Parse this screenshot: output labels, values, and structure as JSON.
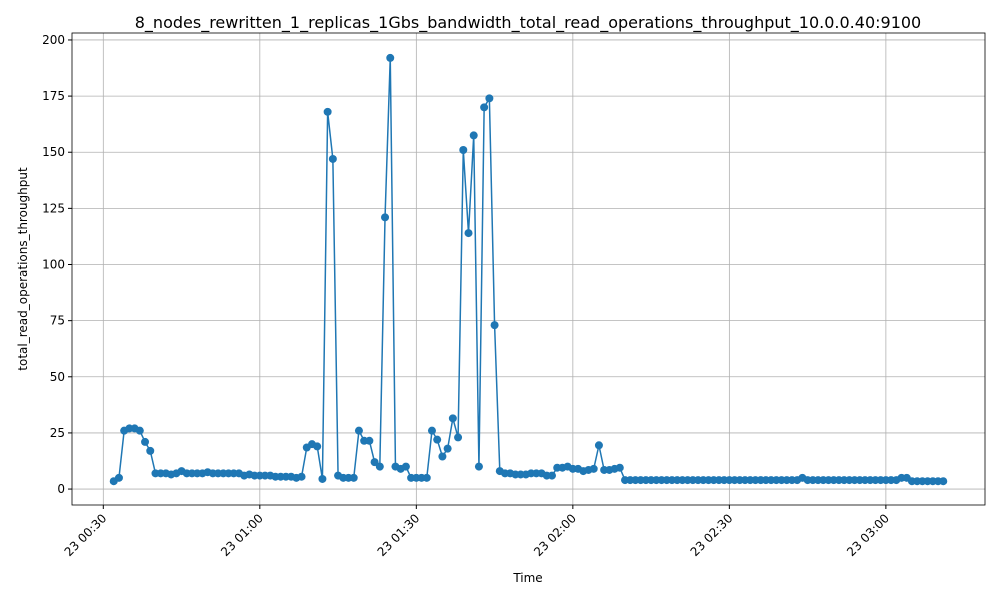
{
  "chart_data": {
    "type": "line",
    "title": "8_nodes_rewritten_1_replicas_1Gbs_bandwidth_total_read_operations_throughput_10.0.0.40:9100",
    "xlabel": "Time",
    "ylabel": "total_read_operations_throughput",
    "color": "#1f77b4",
    "grid": true,
    "xlim": [
      "23 00:24",
      "23 03:19"
    ],
    "xticks": [
      "23 00:30",
      "23 01:00",
      "23 01:30",
      "23 02:00",
      "23 02:30",
      "23 03:00"
    ],
    "ylim": [
      -7.1,
      203.1
    ],
    "yticks": [
      0,
      25,
      50,
      75,
      100,
      125,
      150,
      175,
      200
    ],
    "x": [
      "23 00:32",
      "23 00:33",
      "23 00:34",
      "23 00:35",
      "23 00:36",
      "23 00:37",
      "23 00:38",
      "23 00:39",
      "23 00:40",
      "23 00:41",
      "23 00:42",
      "23 00:43",
      "23 00:44",
      "23 00:45",
      "23 00:46",
      "23 00:47",
      "23 00:48",
      "23 00:49",
      "23 00:50",
      "23 00:51",
      "23 00:52",
      "23 00:53",
      "23 00:54",
      "23 00:55",
      "23 00:56",
      "23 00:57",
      "23 00:58",
      "23 00:59",
      "23 01:00",
      "23 01:01",
      "23 01:02",
      "23 01:03",
      "23 01:04",
      "23 01:05",
      "23 01:06",
      "23 01:07",
      "23 01:08",
      "23 01:09",
      "23 01:10",
      "23 01:11",
      "23 01:12",
      "23 01:13",
      "23 01:14",
      "23 01:15",
      "23 01:16",
      "23 01:17",
      "23 01:18",
      "23 01:19",
      "23 01:20",
      "23 01:21",
      "23 01:22",
      "23 01:23",
      "23 01:24",
      "23 01:25",
      "23 01:26",
      "23 01:27",
      "23 01:28",
      "23 01:29",
      "23 01:30",
      "23 01:31",
      "23 01:32",
      "23 01:33",
      "23 01:34",
      "23 01:35",
      "23 01:36",
      "23 01:37",
      "23 01:38",
      "23 01:39",
      "23 01:40",
      "23 01:41",
      "23 01:42",
      "23 01:43",
      "23 01:44",
      "23 01:45",
      "23 01:46",
      "23 01:47",
      "23 01:48",
      "23 01:49",
      "23 01:50",
      "23 01:51",
      "23 01:52",
      "23 01:53",
      "23 01:54",
      "23 01:55",
      "23 01:56",
      "23 01:57",
      "23 01:58",
      "23 01:59",
      "23 02:00",
      "23 02:01",
      "23 02:02",
      "23 02:03",
      "23 02:04",
      "23 02:05",
      "23 02:06",
      "23 02:07",
      "23 02:08",
      "23 02:09",
      "23 02:10",
      "23 02:11",
      "23 02:12",
      "23 02:13",
      "23 02:14",
      "23 02:15",
      "23 02:16",
      "23 02:17",
      "23 02:18",
      "23 02:19",
      "23 02:20",
      "23 02:21",
      "23 02:22",
      "23 02:23",
      "23 02:24",
      "23 02:25",
      "23 02:26",
      "23 02:27",
      "23 02:28",
      "23 02:29",
      "23 02:30",
      "23 02:31",
      "23 02:32",
      "23 02:33",
      "23 02:34",
      "23 02:35",
      "23 02:36",
      "23 02:37",
      "23 02:38",
      "23 02:39",
      "23 02:40",
      "23 02:41",
      "23 02:42",
      "23 02:43",
      "23 02:44",
      "23 02:45",
      "23 02:46",
      "23 02:47",
      "23 02:48",
      "23 02:49",
      "23 02:50",
      "23 02:51",
      "23 02:52",
      "23 02:53",
      "23 02:54",
      "23 02:55",
      "23 02:56",
      "23 02:57",
      "23 02:58",
      "23 02:59",
      "23 03:00",
      "23 03:01",
      "23 03:02",
      "23 03:03",
      "23 03:04",
      "23 03:05",
      "23 03:06",
      "23 03:07",
      "23 03:08",
      "23 03:09",
      "23 03:10",
      "23 03:11"
    ],
    "values": [
      3.5,
      5,
      26,
      27,
      27,
      26,
      21,
      17,
      7,
      7,
      7,
      6.5,
      7,
      8,
      7,
      7,
      7,
      7,
      7.5,
      7,
      7,
      7,
      7,
      7,
      7,
      6,
      6.5,
      6,
      6,
      6,
      6,
      5.5,
      5.5,
      5.5,
      5.5,
      5,
      5.5,
      18.5,
      20,
      19,
      4.5,
      168,
      147,
      6,
      5,
      5,
      5,
      26,
      21.5,
      21.5,
      12,
      10,
      121,
      192,
      10,
      9,
      10,
      5,
      5,
      5,
      5,
      26,
      22,
      14.5,
      18,
      31.5,
      23,
      151,
      114,
      157.5,
      10,
      170,
      174,
      73,
      8,
      7,
      7,
      6.5,
      6.5,
      6.5,
      7,
      7,
      7,
      6,
      6,
      9.5,
      9.5,
      10,
      9,
      9,
      8,
      8.5,
      9,
      19.5,
      8.5,
      8.5,
      9,
      9.5,
      4,
      4,
      4,
      4,
      4,
      4,
      4,
      4,
      4,
      4,
      4,
      4,
      4,
      4,
      4,
      4,
      4,
      4,
      4,
      4,
      4,
      4,
      4,
      4,
      4,
      4,
      4,
      4,
      4,
      4,
      4,
      4,
      4,
      4,
      5,
      4,
      4,
      4,
      4,
      4,
      4,
      4,
      4,
      4,
      4,
      4,
      4,
      4,
      4,
      4,
      4,
      4,
      4,
      5,
      5,
      3.5,
      3.5,
      3.5,
      3.5,
      3.5,
      3.5,
      3.5
    ]
  }
}
